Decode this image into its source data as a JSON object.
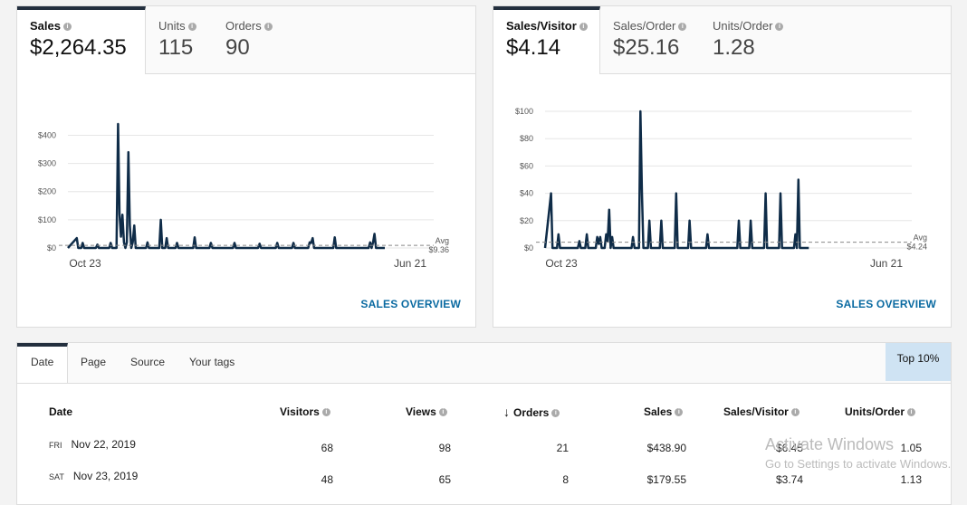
{
  "left_card": {
    "metrics": [
      {
        "label": "Sales",
        "value": "$2,264.35",
        "active": true
      },
      {
        "label": "Units",
        "value": "115"
      },
      {
        "label": "Orders",
        "value": "90"
      }
    ],
    "overview_link": "SALES OVERVIEW"
  },
  "right_card": {
    "metrics": [
      {
        "label": "Sales/Visitor",
        "value": "$4.14",
        "active": true
      },
      {
        "label": "Sales/Order",
        "value": "$25.16"
      },
      {
        "label": "Units/Order",
        "value": "1.28"
      }
    ],
    "overview_link": "SALES OVERVIEW"
  },
  "chart_data": [
    {
      "type": "line",
      "title": "",
      "xlabel": "",
      "ylabel": "",
      "x_tick_labels": [
        "Oct 23",
        "Jun 21"
      ],
      "y_tick_labels": [
        "$0",
        "$100",
        "$200",
        "$300",
        "$400"
      ],
      "ylim": [
        0,
        440
      ],
      "avg_label": "Avg",
      "avg_value_label": "$9.36",
      "avg": 9.36,
      "n_points": 243,
      "points": [
        [
          0,
          0
        ],
        [
          6,
          35
        ],
        [
          7,
          0
        ],
        [
          9,
          0
        ],
        [
          10,
          18
        ],
        [
          11,
          0
        ],
        [
          19,
          0
        ],
        [
          20,
          12
        ],
        [
          21,
          0
        ],
        [
          28,
          0
        ],
        [
          29,
          18
        ],
        [
          30,
          0
        ],
        [
          33,
          0
        ],
        [
          34,
          440
        ],
        [
          35,
          120
        ],
        [
          36,
          40
        ],
        [
          37,
          118
        ],
        [
          38,
          20
        ],
        [
          39,
          0
        ],
        [
          40,
          20
        ],
        [
          41,
          340
        ],
        [
          42,
          80
        ],
        [
          43,
          0
        ],
        [
          44,
          20
        ],
        [
          45,
          80
        ],
        [
          46,
          0
        ],
        [
          53,
          0
        ],
        [
          54,
          20
        ],
        [
          55,
          0
        ],
        [
          62,
          0
        ],
        [
          63,
          100
        ],
        [
          64,
          0
        ],
        [
          66,
          0
        ],
        [
          67,
          35
        ],
        [
          68,
          0
        ],
        [
          73,
          0
        ],
        [
          74,
          18
        ],
        [
          75,
          0
        ],
        [
          85,
          0
        ],
        [
          86,
          38
        ],
        [
          87,
          0
        ],
        [
          96,
          0
        ],
        [
          97,
          18
        ],
        [
          98,
          0
        ],
        [
          112,
          0
        ],
        [
          113,
          18
        ],
        [
          114,
          0
        ],
        [
          129,
          0
        ],
        [
          130,
          15
        ],
        [
          131,
          0
        ],
        [
          141,
          0
        ],
        [
          142,
          18
        ],
        [
          143,
          0
        ],
        [
          152,
          0
        ],
        [
          153,
          18
        ],
        [
          154,
          0
        ],
        [
          163,
          0
        ],
        [
          164,
          20
        ],
        [
          165,
          18
        ],
        [
          166,
          35
        ],
        [
          167,
          0
        ],
        [
          180,
          0
        ],
        [
          181,
          38
        ],
        [
          182,
          0
        ],
        [
          204,
          0
        ],
        [
          205,
          20
        ],
        [
          206,
          0
        ],
        [
          207,
          20
        ],
        [
          208,
          50
        ],
        [
          209,
          0
        ],
        [
          214,
          0
        ],
        [
          215,
          0
        ]
      ]
    },
    {
      "type": "line",
      "title": "",
      "xlabel": "",
      "ylabel": "",
      "x_tick_labels": [
        "Oct 23",
        "Jun 21"
      ],
      "y_tick_labels": [
        "$0",
        "$20",
        "$40",
        "$60",
        "$80",
        "$100"
      ],
      "ylim": [
        0,
        100
      ],
      "avg_label": "Avg",
      "avg_value_label": "$4.24",
      "avg": 4.24,
      "n_points": 241,
      "points": [
        [
          0,
          0
        ],
        [
          4,
          40
        ],
        [
          5,
          0
        ],
        [
          8,
          0
        ],
        [
          9,
          10
        ],
        [
          10,
          0
        ],
        [
          18,
          0
        ],
        [
          19,
          0
        ],
        [
          22,
          0
        ],
        [
          23,
          5
        ],
        [
          24,
          0
        ],
        [
          27,
          0
        ],
        [
          28,
          10
        ],
        [
          29,
          0
        ],
        [
          30,
          0
        ],
        [
          34,
          0
        ],
        [
          35,
          8
        ],
        [
          36,
          3
        ],
        [
          37,
          8
        ],
        [
          38,
          0
        ],
        [
          40,
          0
        ],
        [
          41,
          10
        ],
        [
          42,
          5
        ],
        [
          43,
          28
        ],
        [
          44,
          0
        ],
        [
          45,
          8
        ],
        [
          46,
          0
        ],
        [
          50,
          0
        ],
        [
          51,
          0
        ],
        [
          58,
          0
        ],
        [
          59,
          8
        ],
        [
          60,
          0
        ],
        [
          63,
          0
        ],
        [
          64,
          100
        ],
        [
          65,
          40
        ],
        [
          66,
          0
        ],
        [
          69,
          0
        ],
        [
          70,
          20
        ],
        [
          71,
          0
        ],
        [
          77,
          0
        ],
        [
          78,
          20
        ],
        [
          79,
          0
        ],
        [
          87,
          0
        ],
        [
          88,
          40
        ],
        [
          89,
          0
        ],
        [
          96,
          0
        ],
        [
          97,
          20
        ],
        [
          98,
          0
        ],
        [
          108,
          0
        ],
        [
          109,
          10
        ],
        [
          110,
          0
        ],
        [
          129,
          0
        ],
        [
          130,
          20
        ],
        [
          131,
          0
        ],
        [
          137,
          0
        ],
        [
          138,
          20
        ],
        [
          139,
          0
        ],
        [
          147,
          0
        ],
        [
          148,
          40
        ],
        [
          149,
          0
        ],
        [
          157,
          0
        ],
        [
          158,
          40
        ],
        [
          159,
          0
        ],
        [
          167,
          0
        ],
        [
          168,
          10
        ],
        [
          169,
          0
        ],
        [
          170,
          50
        ],
        [
          171,
          0
        ],
        [
          176,
          0
        ],
        [
          177,
          0
        ]
      ]
    }
  ],
  "tabs": [
    "Date",
    "Page",
    "Source",
    "Your tags"
  ],
  "top10": "Top 10%",
  "table": {
    "columns": [
      "Date",
      "Visitors",
      "Views",
      "Orders",
      "Sales",
      "Sales/Visitor",
      "Units/Order"
    ],
    "sort_arrow": "↓",
    "rows": [
      {
        "day": "FRI",
        "date": "Nov 22, 2019",
        "visitors": "68",
        "views": "98",
        "orders": "21",
        "sales": "$438.90",
        "sales_visitor": "$6.45",
        "units_order": "1.05"
      },
      {
        "day": "SAT",
        "date": "Nov 23, 2019",
        "visitors": "48",
        "views": "65",
        "orders": "8",
        "sales": "$179.55",
        "sales_visitor": "$3.74",
        "units_order": "1.13"
      }
    ]
  },
  "watermark": {
    "title": "Activate Windows",
    "subtitle": "Go to Settings to activate Windows."
  },
  "colors": {
    "line": "#0f2c48",
    "accent": "#232f3e",
    "link": "#0a6aa1",
    "top10_bg": "#cfe3f3"
  }
}
